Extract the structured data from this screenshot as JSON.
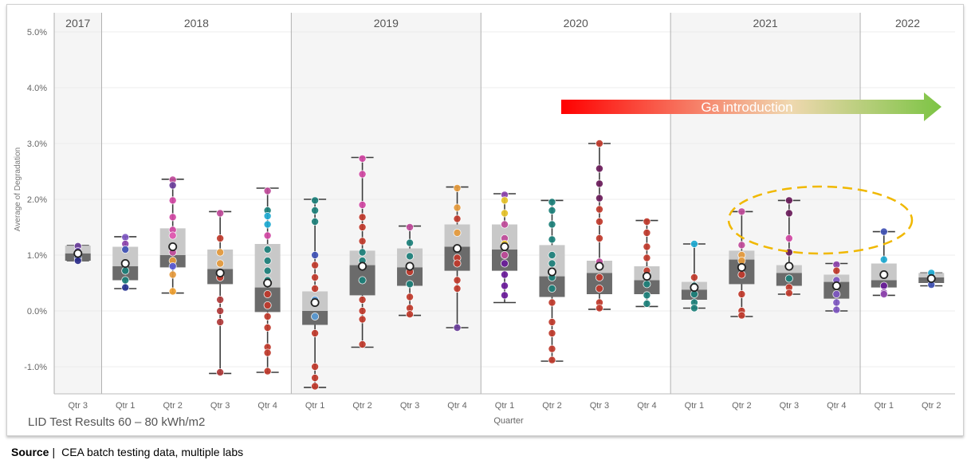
{
  "chart_data": {
    "type": "boxplot",
    "subtitle": "LID Test Results 60 – 80 kWh/m2",
    "ylabel": "Average of Degradation",
    "xlabel": "Quarter",
    "ylim": [
      -1.5,
      5.0
    ],
    "yticks": [
      "5.0%",
      "4.0%",
      "3.0%",
      "2.0%",
      "1.0%",
      "0.0%",
      "-1.0%"
    ],
    "ytick_values": [
      5.0,
      4.0,
      3.0,
      2.0,
      1.0,
      0.0,
      -1.0
    ],
    "years": [
      {
        "label": "2017",
        "shaded": true
      },
      {
        "label": "2018",
        "shaded": false
      },
      {
        "label": "2019",
        "shaded": true
      },
      {
        "label": "2020",
        "shaded": false
      },
      {
        "label": "2021",
        "shaded": true
      },
      {
        "label": "2022",
        "shaded": false
      }
    ],
    "groups": [
      {
        "year": "2017",
        "quarter": "Qtr 3",
        "min": 0.9,
        "q1": 0.9,
        "mid": 1.03,
        "median": 1.03,
        "q3": 1.17,
        "max": 1.17,
        "mean": 1.03,
        "points": [
          [
            1.16,
            "#6a3d9a"
          ],
          [
            0.95,
            "#1f3c88"
          ],
          [
            0.9,
            "#2d2d8a"
          ],
          [
            1.07,
            "#7e57c2"
          ]
        ]
      },
      {
        "year": "2018",
        "quarter": "Qtr 1",
        "min": 0.4,
        "q1": 0.55,
        "mid": 0.8,
        "median": 0.8,
        "q3": 1.15,
        "max": 1.33,
        "mean": 0.85,
        "points": [
          [
            1.32,
            "#7e57c2"
          ],
          [
            1.2,
            "#8e44ad"
          ],
          [
            1.1,
            "#3f51b5"
          ],
          [
            0.85,
            "#e0e0e0"
          ],
          [
            0.72,
            "#1b7f79"
          ],
          [
            0.55,
            "#1b7f79"
          ],
          [
            0.42,
            "#283593"
          ]
        ]
      },
      {
        "year": "2018",
        "quarter": "Qtr 2",
        "min": 0.32,
        "q1": 0.78,
        "mid": 1.0,
        "median": 1.0,
        "q3": 1.48,
        "max": 2.36,
        "mean": 1.15,
        "points": [
          [
            2.35,
            "#c04a9a"
          ],
          [
            2.25,
            "#6a3d9a"
          ],
          [
            1.98,
            "#d147a3"
          ],
          [
            1.68,
            "#d147a3"
          ],
          [
            1.45,
            "#d147a3"
          ],
          [
            1.35,
            "#e056b0"
          ],
          [
            1.05,
            "#c04a9a"
          ],
          [
            0.9,
            "#e59a3c"
          ],
          [
            0.65,
            "#e59a3c"
          ],
          [
            0.35,
            "#f0a030"
          ],
          [
            0.8,
            "#5b5bd6"
          ]
        ]
      },
      {
        "year": "2018",
        "quarter": "Qtr 3",
        "min": -1.12,
        "q1": 0.48,
        "mid": 0.75,
        "median": 0.75,
        "q3": 1.1,
        "max": 1.78,
        "mean": 0.68,
        "points": [
          [
            1.75,
            "#c04a9a"
          ],
          [
            1.3,
            "#c0392b"
          ],
          [
            1.05,
            "#e59a3c"
          ],
          [
            0.85,
            "#e59a3c"
          ],
          [
            0.6,
            "#c0392b"
          ],
          [
            0.2,
            "#b03a3a"
          ],
          [
            0.0,
            "#b03a3a"
          ],
          [
            -0.2,
            "#b03a3a"
          ],
          [
            -1.1,
            "#b03a3a"
          ]
        ]
      },
      {
        "year": "2018",
        "quarter": "Qtr 4",
        "min": -1.1,
        "q1": -0.02,
        "mid": 0.42,
        "median": 0.42,
        "q3": 1.2,
        "max": 2.2,
        "mean": 0.5,
        "points": [
          [
            2.15,
            "#c04a9a"
          ],
          [
            1.8,
            "#1b7f79"
          ],
          [
            1.7,
            "#1eaad2"
          ],
          [
            1.55,
            "#1eaad2"
          ],
          [
            1.35,
            "#d147a3"
          ],
          [
            1.1,
            "#1b7f79"
          ],
          [
            0.9,
            "#1b7f79"
          ],
          [
            0.72,
            "#1b7f79"
          ],
          [
            0.55,
            "#1b7f79"
          ],
          [
            0.3,
            "#c0392b"
          ],
          [
            0.1,
            "#c0392b"
          ],
          [
            -0.1,
            "#c0392b"
          ],
          [
            -0.3,
            "#c0392b"
          ],
          [
            -0.65,
            "#c0392b"
          ],
          [
            -0.75,
            "#c0392b"
          ],
          [
            -1.08,
            "#c0392b"
          ]
        ]
      },
      {
        "year": "2019",
        "quarter": "Qtr 1",
        "min": -1.37,
        "q1": -0.25,
        "mid": 0.0,
        "median": 0.0,
        "q3": 0.35,
        "max": 2.0,
        "mean": 0.15,
        "points": [
          [
            1.98,
            "#1b7f79"
          ],
          [
            1.8,
            "#1b7f79"
          ],
          [
            1.6,
            "#1b7f79"
          ],
          [
            1.0,
            "#3f51b5"
          ],
          [
            0.82,
            "#c0392b"
          ],
          [
            0.6,
            "#c0392b"
          ],
          [
            0.4,
            "#c0392b"
          ],
          [
            0.2,
            "#5b9bd5"
          ],
          [
            -0.1,
            "#5b9bd5"
          ],
          [
            -0.4,
            "#c0392b"
          ],
          [
            -1.0,
            "#c0392b"
          ],
          [
            -1.2,
            "#c0392b"
          ],
          [
            -1.35,
            "#c0392b"
          ]
        ]
      },
      {
        "year": "2019",
        "quarter": "Qtr 2",
        "min": -0.65,
        "q1": 0.28,
        "mid": 0.82,
        "median": 0.82,
        "q3": 1.08,
        "max": 2.75,
        "mean": 0.8,
        "points": [
          [
            2.73,
            "#d147a3"
          ],
          [
            2.45,
            "#d147a3"
          ],
          [
            1.9,
            "#d147a3"
          ],
          [
            1.68,
            "#c0392b"
          ],
          [
            1.5,
            "#c0392b"
          ],
          [
            1.25,
            "#c0392b"
          ],
          [
            1.05,
            "#1b7f79"
          ],
          [
            0.9,
            "#1b7f79"
          ],
          [
            0.55,
            "#1b7f79"
          ],
          [
            0.2,
            "#c0392b"
          ],
          [
            0.0,
            "#c0392b"
          ],
          [
            -0.15,
            "#c0392b"
          ],
          [
            -0.6,
            "#c0392b"
          ]
        ]
      },
      {
        "year": "2019",
        "quarter": "Qtr 3",
        "min": -0.08,
        "q1": 0.45,
        "mid": 0.78,
        "median": 0.78,
        "q3": 1.12,
        "max": 1.52,
        "mean": 0.8,
        "points": [
          [
            1.5,
            "#c04a9a"
          ],
          [
            1.22,
            "#1b7f79"
          ],
          [
            0.98,
            "#1b7f79"
          ],
          [
            0.7,
            "#c0392b"
          ],
          [
            0.48,
            "#1b7f79"
          ],
          [
            0.25,
            "#c0392b"
          ],
          [
            0.05,
            "#c0392b"
          ],
          [
            -0.06,
            "#c0392b"
          ]
        ]
      },
      {
        "year": "2019",
        "quarter": "Qtr 4",
        "min": -0.3,
        "q1": 0.72,
        "mid": 1.15,
        "median": 1.15,
        "q3": 1.55,
        "max": 2.22,
        "mean": 1.12,
        "points": [
          [
            2.2,
            "#e59a3c"
          ],
          [
            1.85,
            "#e59a3c"
          ],
          [
            1.65,
            "#c0392b"
          ],
          [
            1.4,
            "#e59a3c"
          ],
          [
            0.95,
            "#c0392b"
          ],
          [
            0.85,
            "#c0392b"
          ],
          [
            0.55,
            "#c0392b"
          ],
          [
            0.4,
            "#c0392b"
          ],
          [
            -0.3,
            "#6a3d9a"
          ]
        ]
      },
      {
        "year": "2020",
        "quarter": "Qtr 1",
        "min": 0.15,
        "q1": 0.72,
        "mid": 1.1,
        "median": 1.1,
        "q3": 1.55,
        "max": 2.1,
        "mean": 1.15,
        "points": [
          [
            2.08,
            "#8e44ad"
          ],
          [
            1.98,
            "#e6c229"
          ],
          [
            1.75,
            "#e6c229"
          ],
          [
            1.55,
            "#c04a9a"
          ],
          [
            1.3,
            "#c04a9a"
          ],
          [
            1.2,
            "#e6c229"
          ],
          [
            1.0,
            "#c04a9a"
          ],
          [
            0.85,
            "#6a1b9a"
          ],
          [
            0.65,
            "#6a1b9a"
          ],
          [
            0.45,
            "#6a1b9a"
          ],
          [
            0.28,
            "#6a1b9a"
          ]
        ]
      },
      {
        "year": "2020",
        "quarter": "Qtr 2",
        "min": -0.9,
        "q1": 0.25,
        "mid": 0.62,
        "median": 0.62,
        "q3": 1.18,
        "max": 1.98,
        "mean": 0.7,
        "points": [
          [
            1.95,
            "#1b7f79"
          ],
          [
            1.8,
            "#1b7f79"
          ],
          [
            1.55,
            "#1b7f79"
          ],
          [
            1.28,
            "#1b7f79"
          ],
          [
            1.0,
            "#1b7f79"
          ],
          [
            0.85,
            "#1b7f79"
          ],
          [
            0.6,
            "#1b7f79"
          ],
          [
            0.4,
            "#1b7f79"
          ],
          [
            0.15,
            "#c0392b"
          ],
          [
            -0.2,
            "#c0392b"
          ],
          [
            -0.4,
            "#c0392b"
          ],
          [
            -0.68,
            "#c0392b"
          ],
          [
            -0.88,
            "#c0392b"
          ]
        ]
      },
      {
        "year": "2020",
        "quarter": "Qtr 3",
        "min": 0.03,
        "q1": 0.3,
        "mid": 0.68,
        "median": 0.68,
        "q3": 0.9,
        "max": 3.0,
        "mean": 0.8,
        "points": [
          [
            3.0,
            "#c0392b"
          ],
          [
            2.55,
            "#6a1b5a"
          ],
          [
            2.28,
            "#6a1b5a"
          ],
          [
            2.02,
            "#6a1b5a"
          ],
          [
            1.82,
            "#c0392b"
          ],
          [
            1.6,
            "#c0392b"
          ],
          [
            1.3,
            "#c0392b"
          ],
          [
            0.88,
            "#c04a9a"
          ],
          [
            0.6,
            "#c0392b"
          ],
          [
            0.4,
            "#c0392b"
          ],
          [
            0.15,
            "#c0392b"
          ],
          [
            0.05,
            "#c0392b"
          ]
        ]
      },
      {
        "year": "2020",
        "quarter": "Qtr 4",
        "min": 0.08,
        "q1": 0.3,
        "mid": 0.55,
        "median": 0.55,
        "q3": 0.8,
        "max": 1.62,
        "mean": 0.62,
        "points": [
          [
            1.6,
            "#c0392b"
          ],
          [
            1.4,
            "#c0392b"
          ],
          [
            1.15,
            "#c0392b"
          ],
          [
            0.95,
            "#c0392b"
          ],
          [
            0.72,
            "#c0392b"
          ],
          [
            0.48,
            "#1b7f79"
          ],
          [
            0.28,
            "#1b7f79"
          ],
          [
            0.13,
            "#1b7f79"
          ]
        ]
      },
      {
        "year": "2021",
        "quarter": "Qtr 1",
        "min": 0.05,
        "q1": 0.2,
        "mid": 0.38,
        "median": 0.38,
        "q3": 0.52,
        "max": 1.2,
        "mean": 0.42,
        "points": [
          [
            1.2,
            "#1eaad2"
          ],
          [
            0.6,
            "#c0392b"
          ],
          [
            0.45,
            "#1b7f79"
          ],
          [
            0.3,
            "#1b7f79"
          ],
          [
            0.15,
            "#1b7f79"
          ],
          [
            0.05,
            "#1b7f79"
          ]
        ]
      },
      {
        "year": "2021",
        "quarter": "Qtr 2",
        "min": -0.1,
        "q1": 0.48,
        "mid": 0.92,
        "median": 0.92,
        "q3": 1.08,
        "max": 1.78,
        "mean": 0.78,
        "points": [
          [
            1.78,
            "#c04a9a"
          ],
          [
            1.18,
            "#c04a9a"
          ],
          [
            1.0,
            "#e59a3c"
          ],
          [
            0.9,
            "#e59a3c"
          ],
          [
            0.65,
            "#c0392b"
          ],
          [
            0.3,
            "#c0392b"
          ],
          [
            0.0,
            "#c0392b"
          ],
          [
            -0.08,
            "#c0392b"
          ]
        ]
      },
      {
        "year": "2021",
        "quarter": "Qtr 3",
        "min": 0.3,
        "q1": 0.45,
        "mid": 0.68,
        "median": 0.68,
        "q3": 0.82,
        "max": 1.98,
        "mean": 0.8,
        "points": [
          [
            1.98,
            "#6a1b5a"
          ],
          [
            1.75,
            "#6a1b5a"
          ],
          [
            1.3,
            "#d147a3"
          ],
          [
            1.05,
            "#6a1b5a"
          ],
          [
            0.8,
            "#1b7f79"
          ],
          [
            0.58,
            "#1b7f79"
          ],
          [
            0.42,
            "#c0392b"
          ],
          [
            0.32,
            "#c0392b"
          ]
        ]
      },
      {
        "year": "2021",
        "quarter": "Qtr 4",
        "min": 0.0,
        "q1": 0.22,
        "mid": 0.52,
        "median": 0.52,
        "q3": 0.65,
        "max": 0.85,
        "mean": 0.45,
        "points": [
          [
            0.83,
            "#8e44ad"
          ],
          [
            0.72,
            "#c0392b"
          ],
          [
            0.55,
            "#7e57c2"
          ],
          [
            0.3,
            "#7e57c2"
          ],
          [
            0.15,
            "#7e57c2"
          ],
          [
            0.02,
            "#7e57c2"
          ]
        ]
      },
      {
        "year": "2022",
        "quarter": "Qtr 1",
        "min": 0.28,
        "q1": 0.42,
        "mid": 0.55,
        "median": 0.55,
        "q3": 0.85,
        "max": 1.42,
        "mean": 0.65,
        "points": [
          [
            1.42,
            "#3f51b5"
          ],
          [
            0.92,
            "#1eaad2"
          ],
          [
            0.45,
            "#6a1b9a"
          ],
          [
            0.33,
            "#8e44ad"
          ],
          [
            0.3,
            "#8e44ad"
          ]
        ]
      },
      {
        "year": "2022",
        "quarter": "Qtr 2",
        "min": 0.45,
        "q1": 0.5,
        "mid": 0.6,
        "median": 0.6,
        "q3": 0.68,
        "max": 0.68,
        "mean": 0.58,
        "points": [
          [
            0.68,
            "#1eaad2"
          ],
          [
            0.47,
            "#3f51b5"
          ]
        ]
      }
    ],
    "annotation": {
      "label": "Ga introduction",
      "from_color": "#ff0000",
      "mid_color": "#f0d8b0",
      "to_color": "#7cc444"
    },
    "colors": {
      "box_dark": "#6b6b6b",
      "box_light": "#c8c8c8",
      "shade": "#f5f5f5",
      "ellipse": "#f0b800"
    }
  },
  "source": {
    "label": "Source",
    "separator": "|",
    "text": "CEA batch testing data, multiple labs"
  }
}
